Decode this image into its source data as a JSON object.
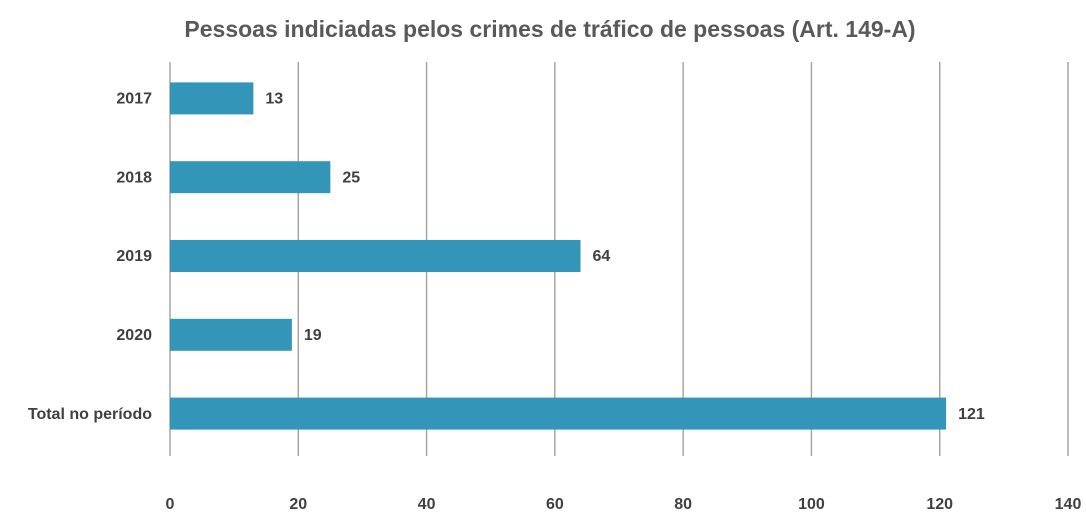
{
  "chart_data": {
    "type": "bar",
    "orientation": "horizontal",
    "title": "Pessoas indiciadas pelos crimes de tráfico de pessoas (Art. 149-A)",
    "categories": [
      "2017",
      "2018",
      "2019",
      "2020",
      "Total no período"
    ],
    "values": [
      13,
      25,
      64,
      19,
      121
    ],
    "color": "#3396b9",
    "xlim": [
      0,
      140
    ],
    "xticks": [
      0,
      20,
      40,
      60,
      80,
      100,
      120,
      140
    ],
    "grid": true
  }
}
